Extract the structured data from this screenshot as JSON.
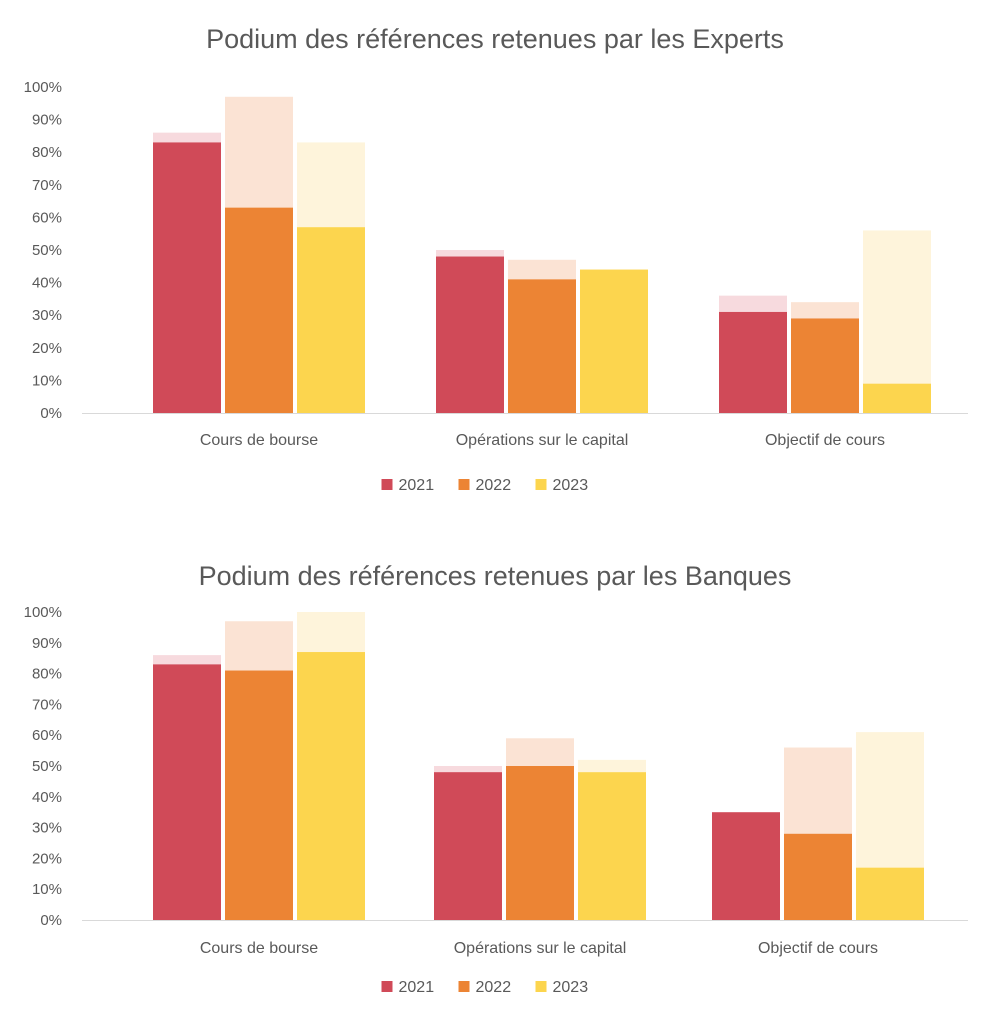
{
  "chart_data": [
    {
      "type": "bar",
      "title": "Podium des références retenues par les Experts",
      "categories": [
        "Cours de bourse",
        "Opérations sur le capital",
        "Objectif de cours"
      ],
      "ylim": [
        0,
        100
      ],
      "yticks": [
        "0%",
        "10%",
        "20%",
        "30%",
        "40%",
        "50%",
        "60%",
        "70%",
        "80%",
        "90%",
        "100%"
      ],
      "grid": false,
      "legend_position": "bottom",
      "series": [
        {
          "name": "2021",
          "color": "#D04A58",
          "pale_color": "#F7DADE",
          "values": [
            83,
            48,
            31
          ],
          "pale_values": [
            86,
            50,
            36
          ]
        },
        {
          "name": "2022",
          "color": "#EC8434",
          "pale_color": "#FBE3D4",
          "values": [
            63,
            41,
            29
          ],
          "pale_values": [
            97,
            47,
            34
          ]
        },
        {
          "name": "2023",
          "color": "#FCD54E",
          "pale_color": "#FEF4DB",
          "values": [
            57,
            44,
            9
          ],
          "pale_values": [
            83,
            44,
            56
          ]
        }
      ]
    },
    {
      "type": "bar",
      "title": "Podium des références retenues par les Banques",
      "categories": [
        "Cours de bourse",
        "Opérations sur le capital",
        "Objectif de cours"
      ],
      "ylim": [
        0,
        100
      ],
      "yticks": [
        "0%",
        "10%",
        "20%",
        "30%",
        "40%",
        "50%",
        "60%",
        "70%",
        "80%",
        "90%",
        "100%"
      ],
      "grid": false,
      "legend_position": "bottom",
      "series": [
        {
          "name": "2021",
          "color": "#D04A58",
          "pale_color": "#F7DADE",
          "values": [
            83,
            48,
            35
          ],
          "pale_values": [
            86,
            50,
            35
          ]
        },
        {
          "name": "2022",
          "color": "#EC8434",
          "pale_color": "#FBE3D4",
          "values": [
            81,
            50,
            28
          ],
          "pale_values": [
            97,
            59,
            56
          ]
        },
        {
          "name": "2023",
          "color": "#FCD54E",
          "pale_color": "#FEF4DB",
          "values": [
            87,
            48,
            17
          ],
          "pale_values": [
            100,
            52,
            61
          ]
        }
      ]
    }
  ]
}
